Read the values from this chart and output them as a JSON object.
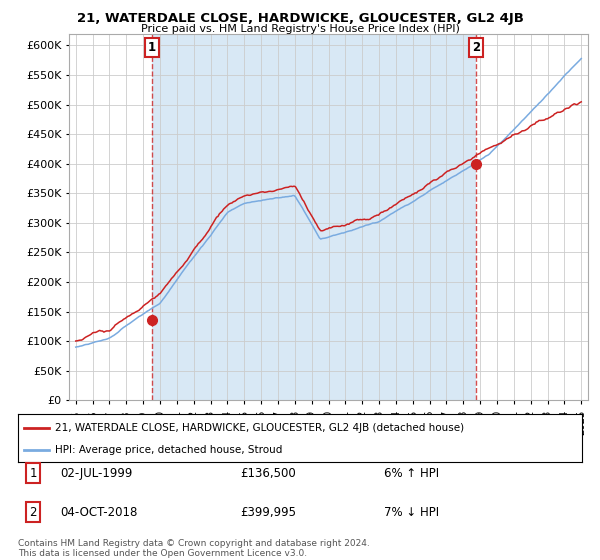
{
  "title": "21, WATERDALE CLOSE, HARDWICKE, GLOUCESTER, GL2 4JB",
  "subtitle": "Price paid vs. HM Land Registry's House Price Index (HPI)",
  "ylim": [
    0,
    620000
  ],
  "xlim_start": 1994.6,
  "xlim_end": 2025.4,
  "sale1_year": 1999.5,
  "sale1_price": 136500,
  "sale1_label": "1",
  "sale1_date": "02-JUL-1999",
  "sale1_hpi": "6% ↑ HPI",
  "sale2_year": 2018.75,
  "sale2_price": 399995,
  "sale2_label": "2",
  "sale2_date": "04-OCT-2018",
  "sale2_hpi": "7% ↓ HPI",
  "red_color": "#cc2222",
  "blue_color": "#7aabe0",
  "fill_color": "#d8e8f5",
  "legend_label_red": "21, WATERDALE CLOSE, HARDWICKE, GLOUCESTER, GL2 4JB (detached house)",
  "legend_label_blue": "HPI: Average price, detached house, Stroud",
  "footnote": "Contains HM Land Registry data © Crown copyright and database right 2024.\nThis data is licensed under the Open Government Licence v3.0.",
  "background_color": "#ffffff",
  "grid_color": "#cccccc"
}
